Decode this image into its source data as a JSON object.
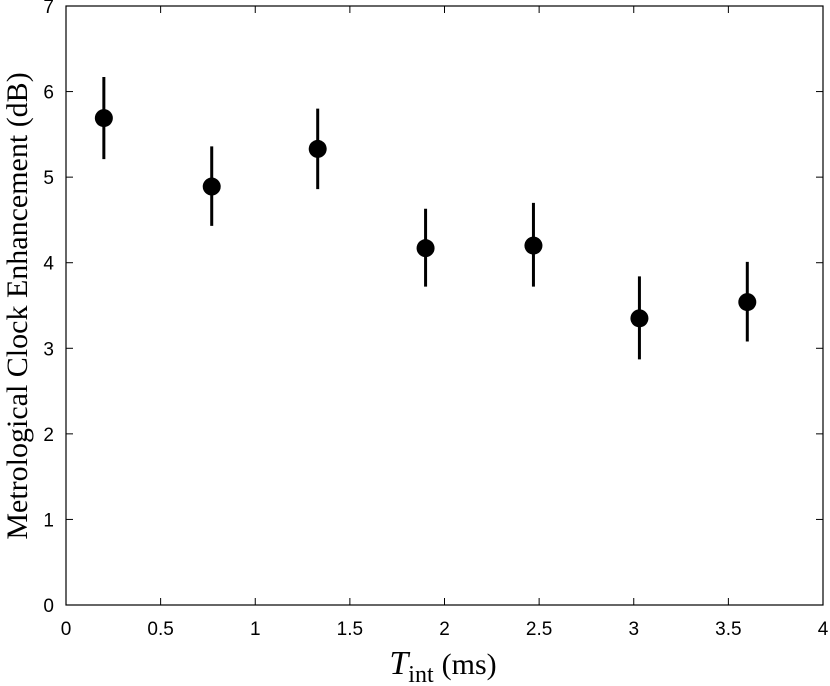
{
  "chart_data": {
    "type": "scatter",
    "title": "",
    "xlabel_main": "T",
    "xlabel_sub": "int",
    "xlabel_unit": "(ms)",
    "ylabel": "Metrological Clock Enhancement (dB)",
    "xlim": [
      0,
      4
    ],
    "ylim": [
      0,
      7
    ],
    "xticks": [
      0,
      0.5,
      1,
      1.5,
      2,
      2.5,
      3,
      3.5,
      4
    ],
    "xtick_labels": [
      "0",
      "0.5",
      "1",
      "1.5",
      "2",
      "2.5",
      "3",
      "3.5",
      "4"
    ],
    "yticks": [
      0,
      1,
      2,
      3,
      4,
      5,
      6,
      7
    ],
    "ytick_labels": [
      "0",
      "1",
      "2",
      "3",
      "4",
      "5",
      "6",
      "7"
    ],
    "grid": false,
    "marker_color": "#000000",
    "series": [
      {
        "points": [
          {
            "x": 0.2,
            "y": 5.69,
            "err_low": 5.21,
            "err_high": 6.17
          },
          {
            "x": 0.77,
            "y": 4.89,
            "err_low": 4.43,
            "err_high": 5.36
          },
          {
            "x": 1.33,
            "y": 5.33,
            "err_low": 4.86,
            "err_high": 5.8
          },
          {
            "x": 1.9,
            "y": 4.17,
            "err_low": 3.72,
            "err_high": 4.63
          },
          {
            "x": 2.47,
            "y": 4.2,
            "err_low": 3.72,
            "err_high": 4.7
          },
          {
            "x": 3.03,
            "y": 3.35,
            "err_low": 2.87,
            "err_high": 3.84
          },
          {
            "x": 3.6,
            "y": 3.54,
            "err_low": 3.08,
            "err_high": 4.01
          }
        ]
      }
    ]
  }
}
